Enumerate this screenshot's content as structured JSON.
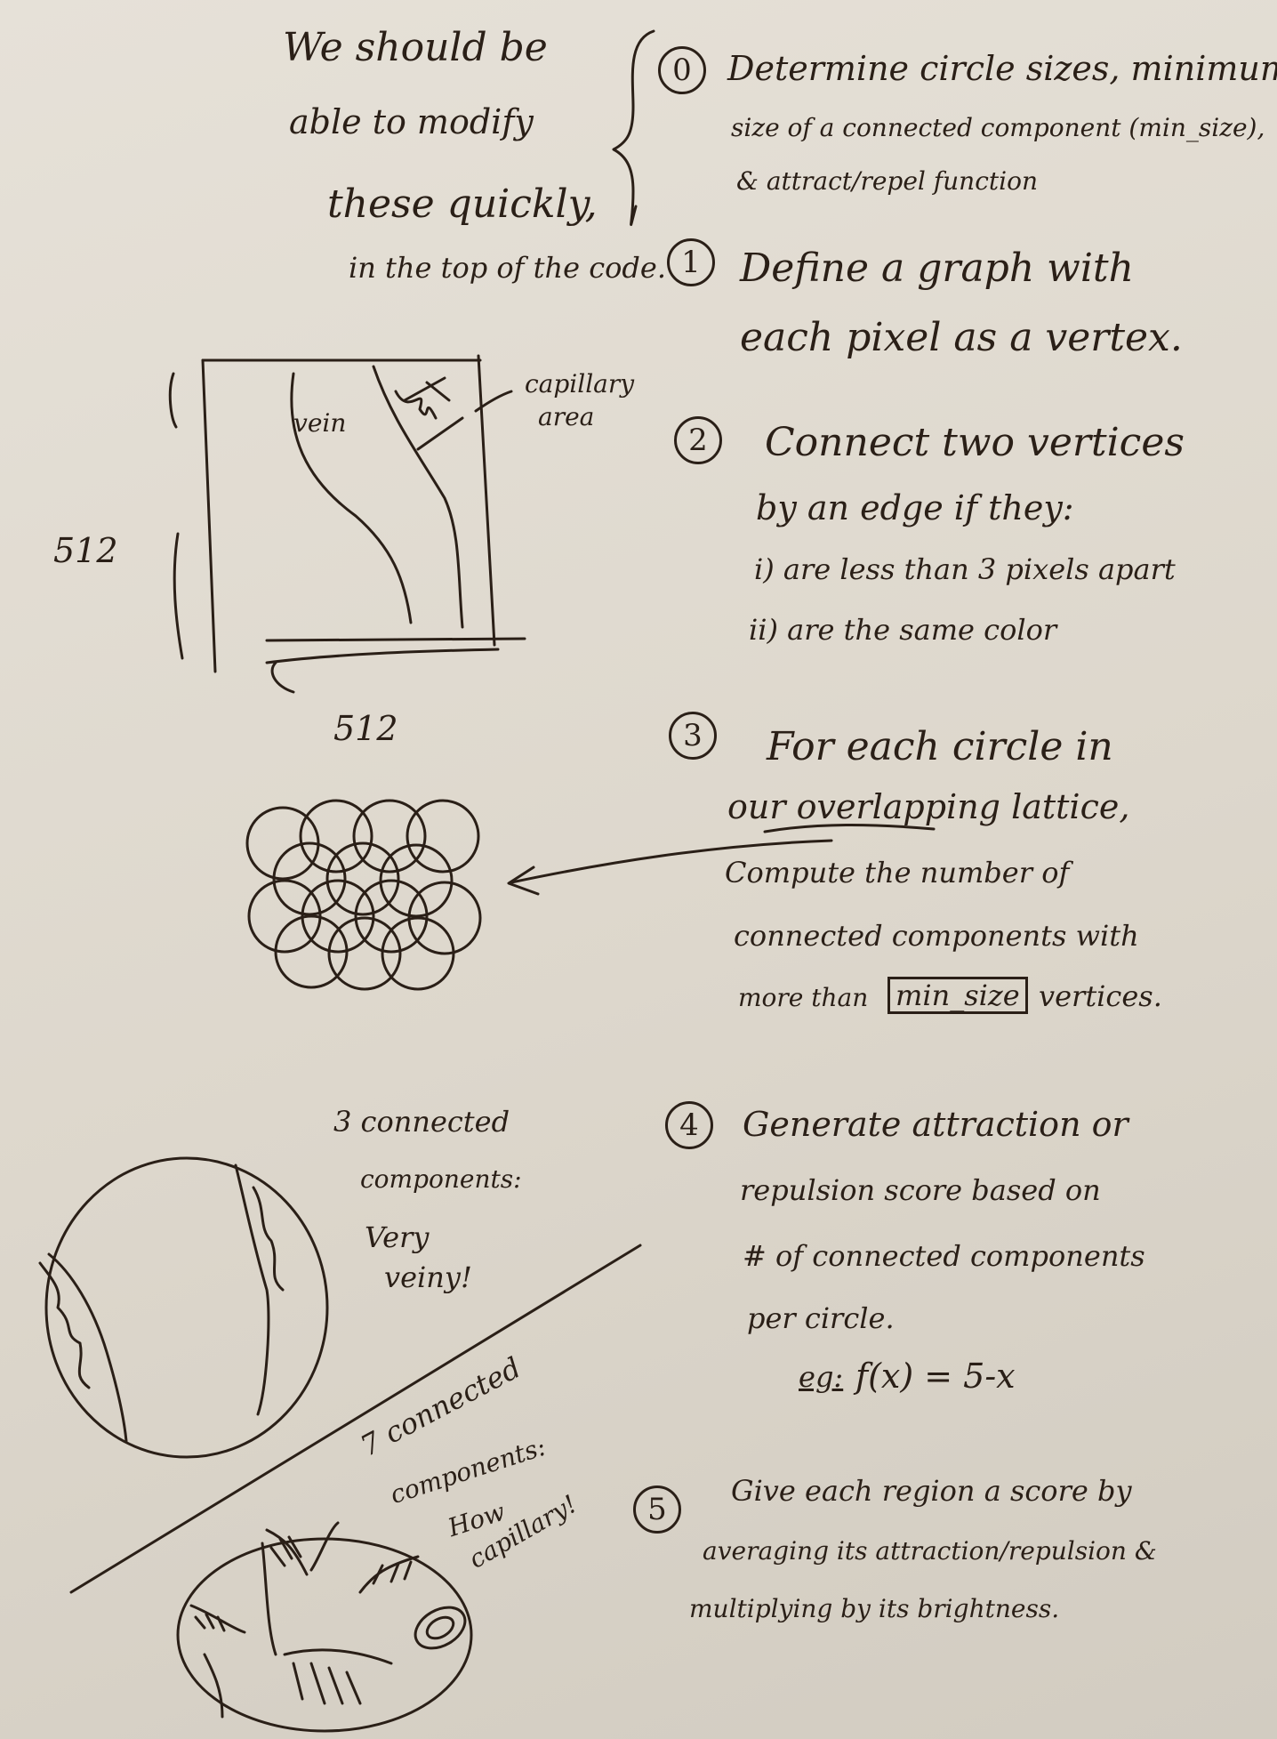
{
  "notes_left": {
    "line1": "We should be",
    "line2": "able to modify",
    "line3": "these quickly,",
    "line4": "in the top of the code."
  },
  "steps": [
    {
      "number": "0",
      "lines": [
        "Determine circle sizes, minimum",
        "size of a connected component (min_size),",
        "& attract/repel function"
      ]
    },
    {
      "number": "1",
      "lines": [
        "Define a graph with",
        "each pixel as a vertex."
      ]
    },
    {
      "number": "2",
      "lines": [
        "Connect two vertices",
        "by an edge if they:",
        "i) are less than 3 pixels apart",
        "ii) are the same color"
      ]
    },
    {
      "number": "3",
      "lines": [
        "For each circle in",
        "our overlapping lattice,",
        "Compute the number of",
        "connected components with"
      ],
      "last_prefix": "more than",
      "boxed_term": "min_size",
      "last_suffix": "vertices."
    },
    {
      "number": "4",
      "lines": [
        "Generate attraction or",
        "repulsion score based on",
        "# of connected components",
        "per circle."
      ],
      "example_label": "eg:",
      "example_formula": "f(x) = 5-x"
    },
    {
      "number": "5",
      "lines": [
        "Give each region a score by",
        "averaging its attraction/repulsion &",
        "multiplying by its brightness."
      ]
    }
  ],
  "diagram": {
    "vein_label": "vein",
    "capillary_label_1": "capillary",
    "capillary_label_2": "area",
    "height_label": "512",
    "width_label": "512"
  },
  "circle_1": {
    "line1": "3 connected",
    "line2": "components:",
    "line3": "Very",
    "line4": "veiny!"
  },
  "circle_2": {
    "line1": "7 connected",
    "line2": "components:",
    "line3": "How",
    "line4": "capillary!"
  }
}
